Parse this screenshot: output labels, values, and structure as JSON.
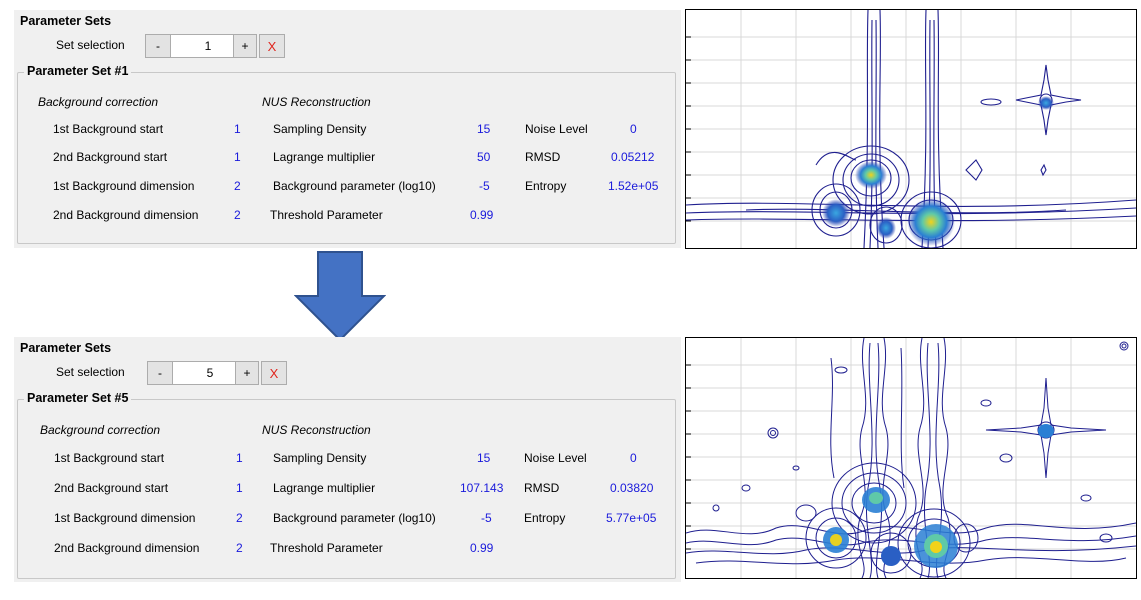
{
  "panels": [
    {
      "section_title": "Parameter Sets",
      "set_selection_label": "Set selection",
      "minus_label": "-",
      "selection_value": "1",
      "plus_label": "+",
      "delete_label": "X",
      "group_title": "Parameter Set #1",
      "bg_heading": "Background correction",
      "nus_heading": "NUS Reconstruction",
      "bg_rows": [
        {
          "label": "1st Background start",
          "value": "1"
        },
        {
          "label": "2nd Background start",
          "value": "1"
        },
        {
          "label": "1st Background dimension",
          "value": "2"
        },
        {
          "label": "2nd Background dimension",
          "value": "2"
        }
      ],
      "nus_rows": [
        {
          "label": "Sampling Density",
          "value": "15"
        },
        {
          "label": "Lagrange multiplier",
          "value": "50"
        },
        {
          "label": "Background parameter (log10)",
          "value": "-5"
        },
        {
          "label": "Threshold Parameter",
          "value": "0.99"
        }
      ],
      "stat_rows": [
        {
          "label": "Noise Level",
          "value": "0"
        },
        {
          "label": "RMSD",
          "value": "0.05212"
        },
        {
          "label": "Entropy",
          "value": "1.52e+05"
        }
      ]
    },
    {
      "section_title": "Parameter Sets",
      "set_selection_label": "Set selection",
      "minus_label": "-",
      "selection_value": "5",
      "plus_label": "+",
      "delete_label": "X",
      "group_title": "Parameter Set #5",
      "bg_heading": "Background correction",
      "nus_heading": "NUS Reconstruction",
      "bg_rows": [
        {
          "label": "1st Background start",
          "value": "1"
        },
        {
          "label": "2nd Background start",
          "value": "1"
        },
        {
          "label": "1st Background dimension",
          "value": "2"
        },
        {
          "label": "2nd Background dimension",
          "value": "2"
        }
      ],
      "nus_rows": [
        {
          "label": "Sampling Density",
          "value": "15"
        },
        {
          "label": "Lagrange multiplier",
          "value": "107.143"
        },
        {
          "label": "Background parameter (log10)",
          "value": "-5"
        },
        {
          "label": "Threshold Parameter",
          "value": "0.99"
        }
      ],
      "stat_rows": [
        {
          "label": "Noise Level",
          "value": "0"
        },
        {
          "label": "RMSD",
          "value": "0.03820"
        },
        {
          "label": "Entropy",
          "value": "5.77e+05"
        }
      ]
    }
  ],
  "colors": {
    "value_blue": "#1a1adb",
    "delete_red": "#e0261e",
    "arrow_fill": "#4472c4",
    "arrow_stroke": "#2f528f",
    "contour": "#1f1f8f",
    "grid": "#d9d9d9"
  },
  "icons": {
    "arrow": "arrow-down-icon"
  }
}
